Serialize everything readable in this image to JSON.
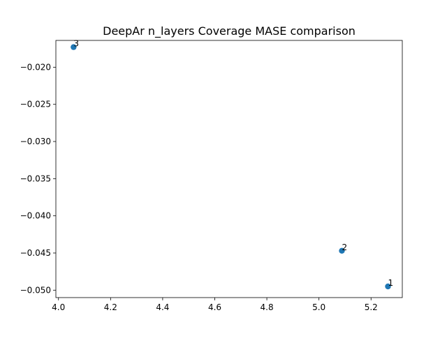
{
  "chart_data": {
    "type": "scatter",
    "title": "DeepAr n_layers Coverage MASE comparison",
    "xlabel": "",
    "ylabel": "",
    "xlim": [
      3.99,
      5.32
    ],
    "ylim": [
      -0.051,
      -0.0164
    ],
    "xticks": [
      4.0,
      4.2,
      4.4,
      4.6,
      4.8,
      5.0,
      5.2
    ],
    "xtick_labels": [
      "4.0",
      "4.2",
      "4.4",
      "4.6",
      "4.8",
      "5.0",
      "5.2"
    ],
    "yticks": [
      -0.05,
      -0.045,
      -0.04,
      -0.035,
      -0.03,
      -0.025,
      -0.02
    ],
    "ytick_labels": [
      "−0.050",
      "−0.045",
      "−0.040",
      "−0.035",
      "−0.030",
      "−0.025",
      "−0.020"
    ],
    "grid": false,
    "marker_color": "#1f77b4",
    "points": [
      {
        "label": "1",
        "x": 5.265,
        "y": -0.0495
      },
      {
        "label": "2",
        "x": 5.088,
        "y": -0.0447
      },
      {
        "label": "3",
        "x": 4.058,
        "y": -0.0173
      }
    ]
  }
}
